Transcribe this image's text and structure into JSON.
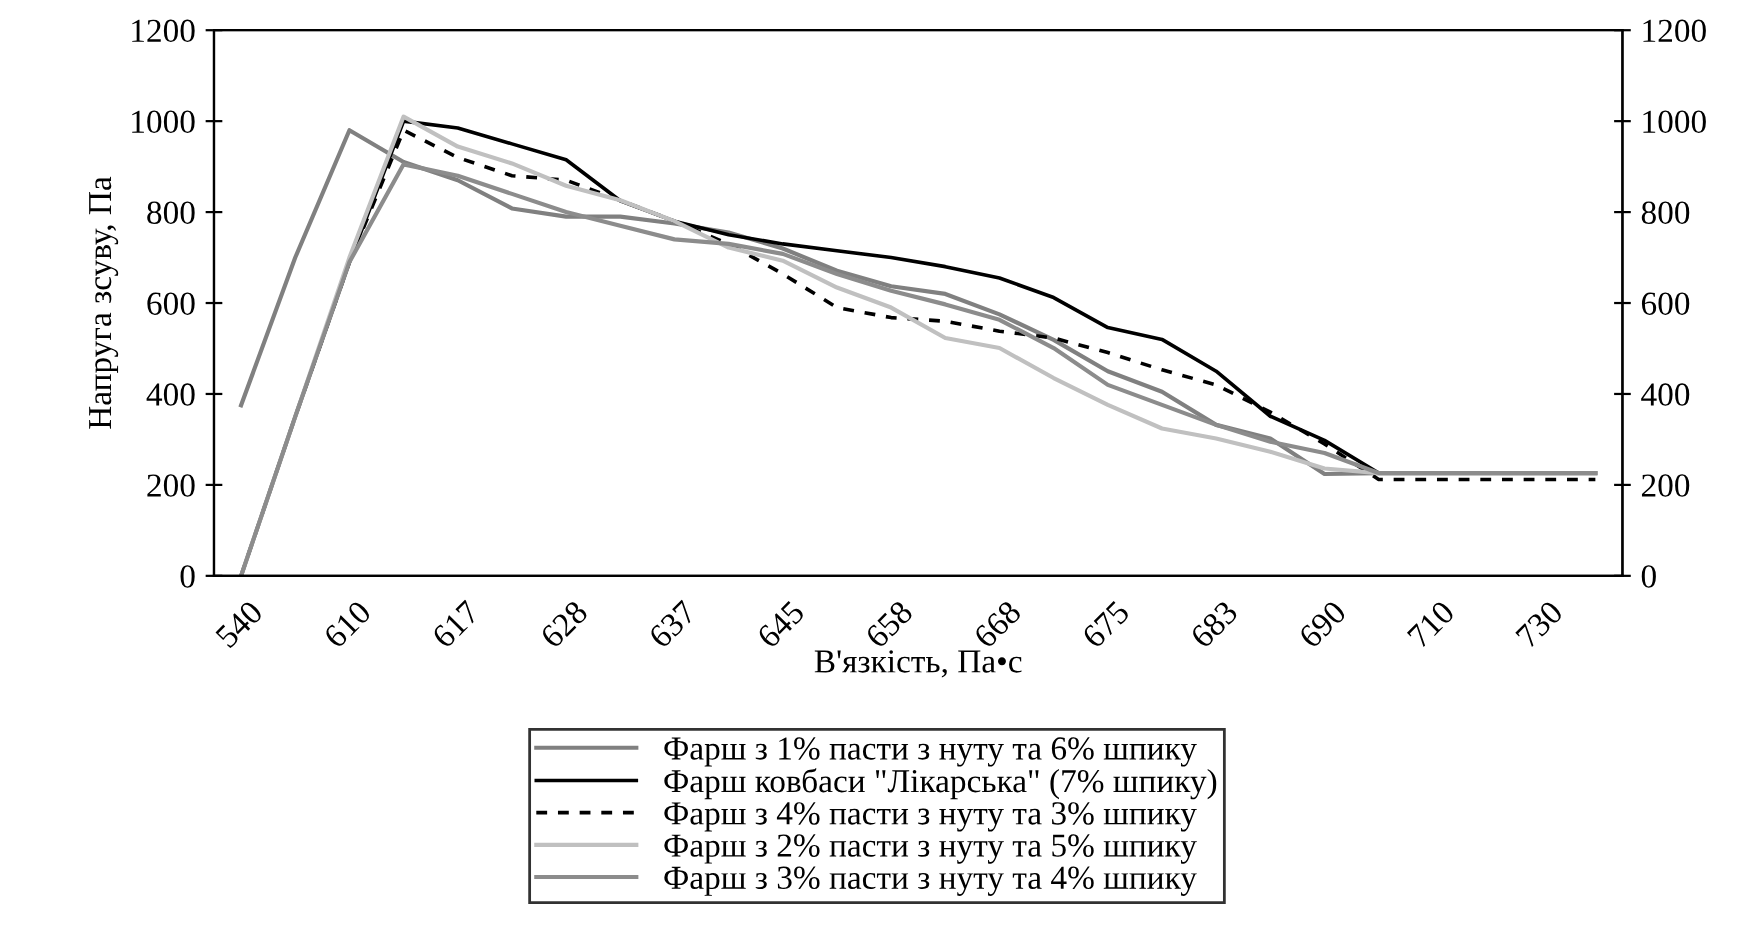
{
  "chart_data": {
    "type": "line",
    "xlabel": "В'язкість, Па•с",
    "ylabel": "Напруга зсуву, Па",
    "categories": [
      "540",
      null,
      "610",
      null,
      "617",
      null,
      "628",
      null,
      "637",
      null,
      "645",
      null,
      "658",
      null,
      "668",
      null,
      "675",
      null,
      "683",
      null,
      "690",
      null,
      "710",
      null,
      "730",
      null
    ],
    "series": [
      {
        "name": "Фарш з 1% пасти з нуту та 6% шпику",
        "color": "#808080",
        "line_style": "solid",
        "values": [
          375,
          700,
          980,
          910,
          870,
          808,
          790,
          790,
          775,
          755,
          720,
          671,
          637,
          620,
          575,
          519,
          450,
          405,
          332,
          302,
          224,
          226,
          226,
          226,
          226,
          226
        ]
      },
      {
        "name": "Фарш ковбаси \"Лікарська\" (7% шпику)",
        "color": "#000000",
        "line_style": "solid",
        "values": [
          0,
          350,
          690,
          1000,
          985,
          950,
          915,
          825,
          780,
          750,
          730,
          715,
          700,
          680,
          655,
          612,
          546,
          520,
          450,
          351,
          298,
          226,
          226,
          226,
          226,
          226
        ]
      },
      {
        "name": "Фарш з 4% пасти з нуту та 3% шпику",
        "color": "#000000",
        "line_style": "dashed",
        "values": [
          0,
          350,
          690,
          980,
          920,
          880,
          870,
          826,
          780,
          730,
          664,
          590,
          568,
          560,
          538,
          523,
          491,
          453,
          420,
          360,
          290,
          212,
          212,
          212,
          212,
          212
        ]
      },
      {
        "name": "Фарш з 2% пасти з нуту та 5% шпику",
        "color": "#c0c0c0",
        "line_style": "solid",
        "values": [
          0,
          350,
          700,
          1010,
          944,
          907,
          858,
          826,
          780,
          722,
          693,
          634,
          590,
          523,
          501,
          435,
          376,
          324,
          302,
          273,
          236,
          226,
          226,
          226,
          226,
          226
        ]
      },
      {
        "name": "Фарш з 3% пасти з нуту та 4% шпику",
        "color": "#8c8c8c",
        "line_style": "solid",
        "values": [
          0,
          350,
          690,
          905,
          880,
          840,
          800,
          770,
          740,
          730,
          708,
          664,
          627,
          597,
          563,
          501,
          420,
          376,
          332,
          295,
          270,
          226,
          226,
          226,
          226,
          226
        ]
      }
    ],
    "ylim": [
      0,
      1200
    ],
    "yticks": [
      0,
      200,
      400,
      600,
      800,
      1000,
      1200
    ],
    "y2lim": [
      0,
      1200
    ],
    "y2ticks": [
      0,
      200,
      400,
      600,
      800,
      1000,
      1200
    ],
    "grid": false,
    "legend": "bottom",
    "marker": "none"
  }
}
